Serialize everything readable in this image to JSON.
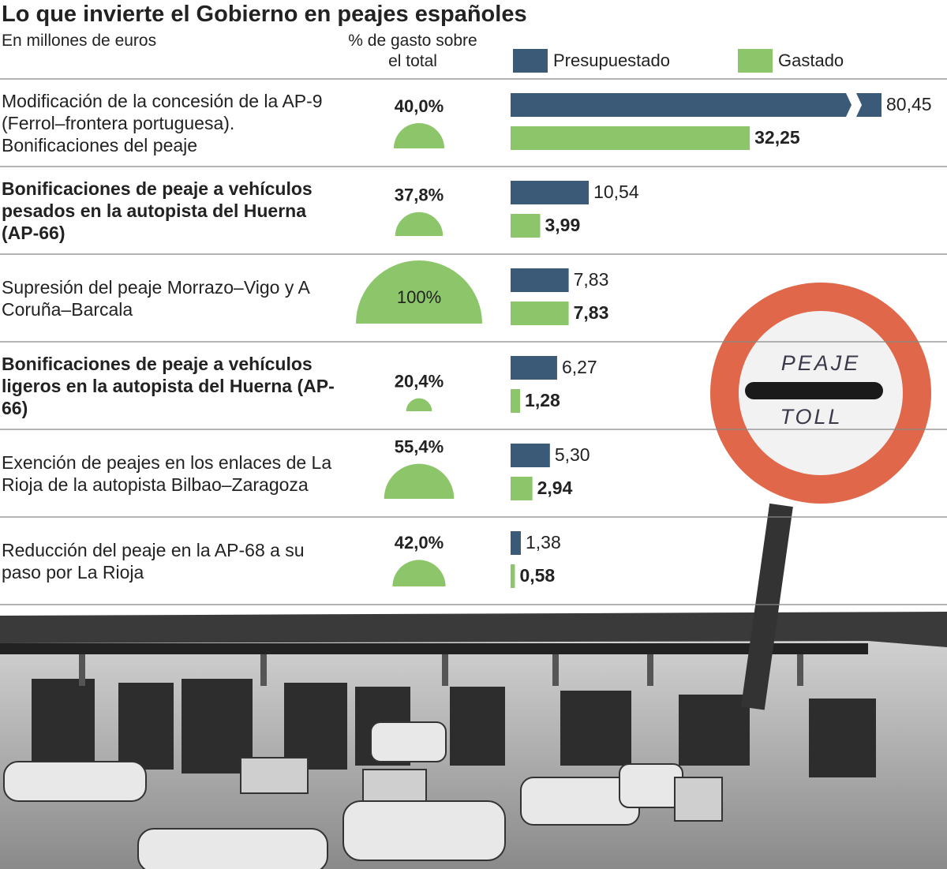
{
  "chart_data": {
    "type": "bar",
    "orientation": "horizontal",
    "title": "Lo que invierte el Gobierno en peajes españoles",
    "subtitle": "En millones de euros",
    "categories": [
      "Modificación de la concesión de la AP-9 (Ferrol–frontera portuguesa). Bonificaciones del peaje",
      "Bonificaciones de peaje a vehículos pesados en la autopista del Huerna (AP-66)",
      "Supresión del peaje Morrazo–Vigo y A Coruña–Barcala",
      "Bonificaciones de peaje a vehículos ligeros en la autopista del Huerna (AP-66)",
      "Exención de peajes en los enlaces de La Rioja de la autopista Bilbao–Zaragoza",
      "Reducción del peaje en la AP-68 a su paso por La Rioja"
    ],
    "bold_categories": [
      false,
      true,
      false,
      true,
      false,
      false
    ],
    "series": [
      {
        "name": "Presupuestado",
        "color": "#3b5a78",
        "values": [
          80.45,
          10.54,
          7.83,
          6.27,
          5.3,
          1.38
        ],
        "value_labels": [
          "80,45",
          "10,54",
          "7,83",
          "6,27",
          "5,30",
          "1,38"
        ]
      },
      {
        "name": "Gastado",
        "color": "#8cc56a",
        "values": [
          32.25,
          3.99,
          7.83,
          1.28,
          2.94,
          0.58
        ],
        "value_labels": [
          "32,25",
          "3,99",
          "7,83",
          "1,28",
          "2,94",
          "0,58"
        ]
      }
    ],
    "axis_break": true,
    "share": {
      "title": "% de gasto sobre el total",
      "color": "#8cc56a",
      "values": [
        40.0,
        37.8,
        100,
        20.4,
        55.4,
        42.0
      ],
      "value_labels": [
        "40,0%",
        "37,8%",
        "100%",
        "20,4%",
        "55,4%",
        "42,0%"
      ]
    }
  },
  "photo_sign": {
    "line1": "PEAJE",
    "line2": "TOLL"
  }
}
